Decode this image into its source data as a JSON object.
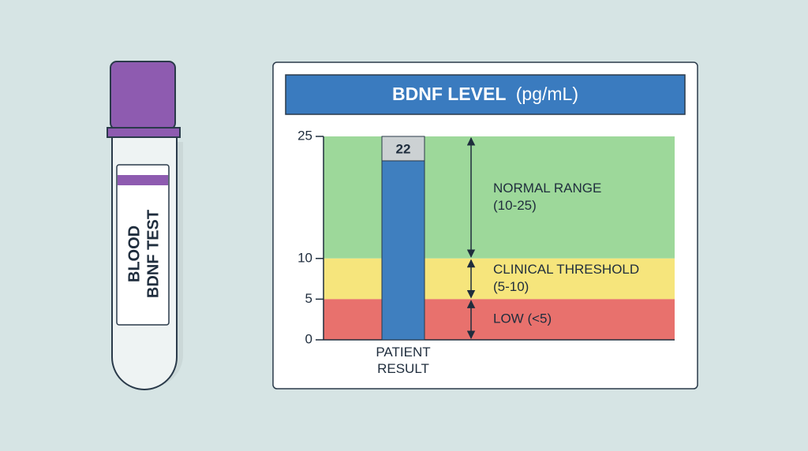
{
  "tube": {
    "label_lines": [
      "BLOOD",
      "BDNF TEST"
    ]
  },
  "chart_data": {
    "type": "bar",
    "title": "BDNF LEVEL",
    "title_unit": "(pg/mL)",
    "categories": [
      "PATIENT RESULT"
    ],
    "values": [
      22
    ],
    "color": "#3f7fbf",
    "ylim": [
      0,
      25
    ],
    "yticks": [
      0,
      5,
      10,
      25
    ],
    "bands": [
      {
        "label": "NORMAL RANGE",
        "sublabel": "(10-25)",
        "from": 10,
        "to": 25,
        "color": "#9dd89a"
      },
      {
        "label": "CLINICAL THRESHOLD",
        "sublabel": "(5-10)",
        "from": 5,
        "to": 10,
        "color": "#f6e57c"
      },
      {
        "label": "LOW (<5)",
        "from": 0,
        "to": 5,
        "color": "#e8716d"
      }
    ]
  }
}
